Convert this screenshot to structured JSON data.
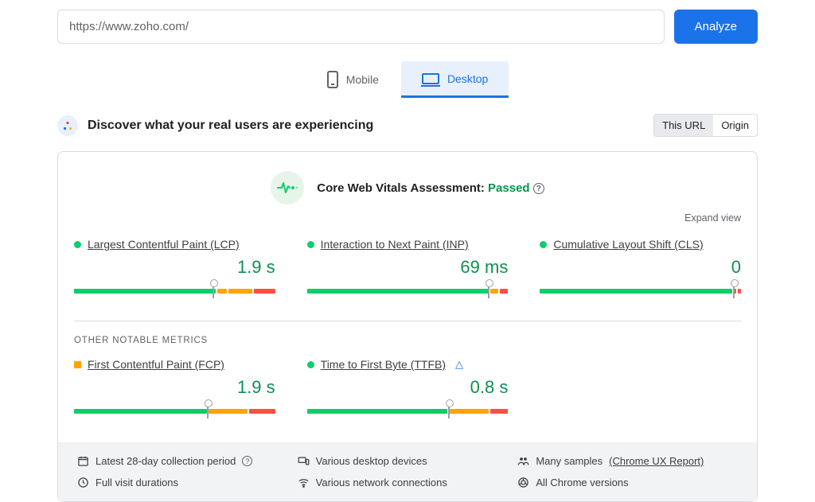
{
  "topbar": {
    "url_value": "https://www.zoho.com/",
    "analyze_label": "Analyze"
  },
  "tabs": {
    "mobile_label": "Mobile",
    "desktop_label": "Desktop",
    "active": "desktop"
  },
  "section": {
    "title": "Discover what your real users are experiencing",
    "toggle_this_url": "This URL",
    "toggle_origin": "Origin"
  },
  "cwv": {
    "prefix": "Core Web Vitals Assessment: ",
    "status": "Passed"
  },
  "expand_label": "Expand view",
  "colors": {
    "green": "#0cce6b",
    "orange": "#ffa400",
    "red": "#ff4e42",
    "good_text": "#0d904f"
  },
  "metrics_primary": [
    {
      "name": "Largest Contentful Paint (LCP)",
      "value": "1.9 s",
      "indicator": "green",
      "marker_pct": 69,
      "segments": [
        {
          "color": "#0cce6b",
          "grow": 72
        },
        {
          "color": "#ffa400",
          "grow": 5
        },
        {
          "color": "#ffa400",
          "grow": 12
        },
        {
          "color": "#ff4e42",
          "grow": 11
        }
      ]
    },
    {
      "name": "Interaction to Next Paint (INP)",
      "value": "69 ms",
      "indicator": "green",
      "marker_pct": 90,
      "segments": [
        {
          "color": "#0cce6b",
          "grow": 92
        },
        {
          "color": "#ffa400",
          "grow": 4
        },
        {
          "color": "#ff4e42",
          "grow": 4
        }
      ]
    },
    {
      "name": "Cumulative Layout Shift (CLS)",
      "value": "0",
      "indicator": "green",
      "marker_pct": 96,
      "segments": [
        {
          "color": "#0cce6b",
          "grow": 97
        },
        {
          "color": "#ff4e42",
          "grow": 1.5
        },
        {
          "color": "#ff4e42",
          "grow": 1.5
        }
      ]
    }
  ],
  "other_label": "OTHER NOTABLE METRICS",
  "metrics_other": [
    {
      "name": "First Contentful Paint (FCP)",
      "value": "1.9 s",
      "indicator": "orange",
      "marker_pct": 66,
      "segments": [
        {
          "color": "#0cce6b",
          "grow": 67
        },
        {
          "color": "#ffa400",
          "grow": 20
        },
        {
          "color": "#ff4e42",
          "grow": 13
        }
      ]
    },
    {
      "name": "Time to First Byte (TTFB)",
      "value": "0.8 s",
      "indicator": "green",
      "experimental": true,
      "marker_pct": 70,
      "segments": [
        {
          "color": "#0cce6b",
          "grow": 71
        },
        {
          "color": "#ffa400",
          "grow": 20
        },
        {
          "color": "#ff4e42",
          "grow": 9
        }
      ]
    }
  ],
  "footer": {
    "period": "Latest 28-day collection period",
    "devices": "Various desktop devices",
    "samples_prefix": "Many samples ",
    "samples_link": "(Chrome UX Report)",
    "durations": "Full visit durations",
    "network": "Various network connections",
    "versions": "All Chrome versions"
  }
}
